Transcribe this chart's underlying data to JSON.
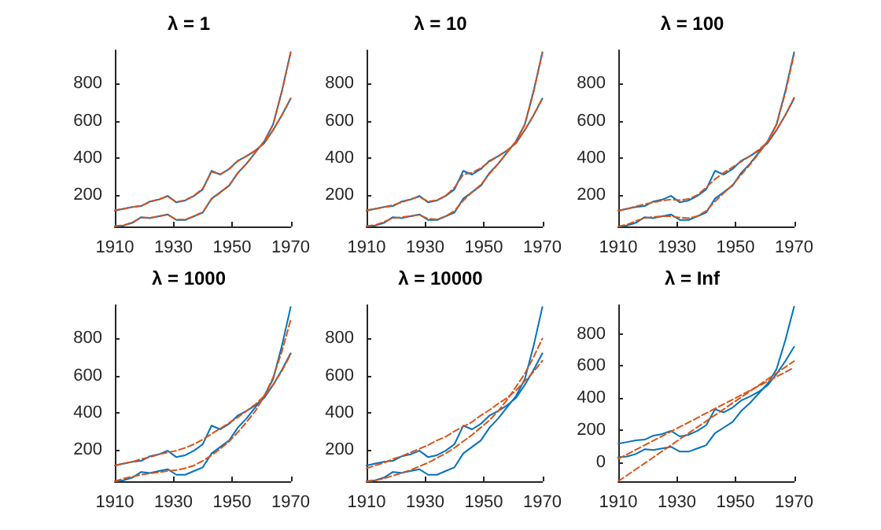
{
  "chart_data": [
    {
      "type": "line",
      "title": "λ = 1",
      "x": [
        1910,
        1913,
        1916,
        1919,
        1922,
        1925,
        1928,
        1931,
        1934,
        1937,
        1940,
        1943,
        1946,
        1949,
        1952,
        1955,
        1958,
        1961,
        1964,
        1967,
        1970
      ],
      "xlim": [
        1910,
        1970
      ],
      "xticks": [
        1910,
        1930,
        1950,
        1970
      ],
      "ylim": [
        30,
        980
      ],
      "yticks": [
        200,
        400,
        600,
        800
      ],
      "grid": false,
      "series": [
        {
          "color": "#0072bd",
          "line_style": "solid",
          "values": [
            115,
            125,
            135,
            140,
            165,
            175,
            195,
            160,
            170,
            195,
            230,
            330,
            310,
            340,
            385,
            410,
            440,
            480,
            550,
            630,
            720
          ]
        },
        {
          "color": "#0072bd",
          "line_style": "solid",
          "values": [
            30,
            35,
            50,
            80,
            75,
            85,
            95,
            65,
            65,
            85,
            105,
            180,
            215,
            250,
            320,
            370,
            430,
            490,
            580,
            760,
            970
          ]
        },
        {
          "color": "#d95319",
          "line_style": "dashed",
          "values": [
            118,
            125,
            135,
            142,
            162,
            177,
            192,
            162,
            172,
            196,
            235,
            325,
            312,
            340,
            383,
            410,
            440,
            480,
            550,
            630,
            720
          ]
        },
        {
          "color": "#d95319",
          "line_style": "dashed",
          "values": [
            32,
            37,
            52,
            78,
            77,
            85,
            94,
            67,
            67,
            85,
            108,
            178,
            213,
            252,
            318,
            370,
            430,
            490,
            580,
            758,
            968
          ]
        }
      ]
    },
    {
      "type": "line",
      "title": "λ = 10",
      "x": [
        1910,
        1913,
        1916,
        1919,
        1922,
        1925,
        1928,
        1931,
        1934,
        1937,
        1940,
        1943,
        1946,
        1949,
        1952,
        1955,
        1958,
        1961,
        1964,
        1967,
        1970
      ],
      "xlim": [
        1910,
        1970
      ],
      "xticks": [
        1910,
        1930,
        1950,
        1970
      ],
      "ylim": [
        30,
        980
      ],
      "yticks": [
        200,
        400,
        600,
        800
      ],
      "grid": false,
      "series": [
        {
          "color": "#0072bd",
          "line_style": "solid",
          "values": [
            115,
            125,
            135,
            140,
            165,
            175,
            195,
            160,
            170,
            195,
            230,
            330,
            310,
            340,
            385,
            410,
            440,
            480,
            550,
            630,
            720
          ]
        },
        {
          "color": "#0072bd",
          "line_style": "solid",
          "values": [
            30,
            35,
            50,
            80,
            75,
            85,
            95,
            65,
            65,
            85,
            105,
            180,
            215,
            250,
            320,
            370,
            430,
            490,
            580,
            760,
            970
          ]
        },
        {
          "color": "#d95319",
          "line_style": "dashed",
          "values": [
            118,
            125,
            135,
            145,
            160,
            178,
            190,
            165,
            172,
            196,
            240,
            310,
            320,
            345,
            380,
            410,
            440,
            480,
            550,
            630,
            720
          ]
        },
        {
          "color": "#d95319",
          "line_style": "dashed",
          "values": [
            32,
            38,
            55,
            75,
            80,
            86,
            92,
            72,
            68,
            85,
            115,
            170,
            215,
            255,
            315,
            370,
            430,
            490,
            580,
            755,
            965
          ]
        }
      ]
    },
    {
      "type": "line",
      "title": "λ = 100",
      "x": [
        1910,
        1913,
        1916,
        1919,
        1922,
        1925,
        1928,
        1931,
        1934,
        1937,
        1940,
        1943,
        1946,
        1949,
        1952,
        1955,
        1958,
        1961,
        1964,
        1967,
        1970
      ],
      "xlim": [
        1910,
        1970
      ],
      "xticks": [
        1910,
        1930,
        1950,
        1970
      ],
      "ylim": [
        30,
        980
      ],
      "yticks": [
        200,
        400,
        600,
        800
      ],
      "grid": false,
      "series": [
        {
          "color": "#0072bd",
          "line_style": "solid",
          "values": [
            115,
            125,
            135,
            140,
            165,
            175,
            195,
            160,
            170,
            195,
            230,
            330,
            310,
            340,
            385,
            410,
            440,
            480,
            550,
            630,
            720
          ]
        },
        {
          "color": "#0072bd",
          "line_style": "solid",
          "values": [
            30,
            35,
            50,
            80,
            75,
            85,
            95,
            65,
            65,
            85,
            105,
            180,
            215,
            250,
            320,
            370,
            430,
            490,
            580,
            760,
            970
          ]
        },
        {
          "color": "#d95319",
          "line_style": "dashed",
          "values": [
            115,
            125,
            138,
            150,
            160,
            170,
            175,
            172,
            178,
            200,
            240,
            285,
            320,
            350,
            380,
            410,
            445,
            485,
            550,
            630,
            725
          ]
        },
        {
          "color": "#d95319",
          "line_style": "dashed",
          "values": [
            30,
            40,
            60,
            75,
            82,
            85,
            85,
            78,
            75,
            85,
            115,
            165,
            210,
            255,
            310,
            365,
            425,
            490,
            580,
            750,
            960
          ]
        }
      ]
    },
    {
      "type": "line",
      "title": "λ = 1000",
      "x": [
        1910,
        1913,
        1916,
        1919,
        1922,
        1925,
        1928,
        1931,
        1934,
        1937,
        1940,
        1943,
        1946,
        1949,
        1952,
        1955,
        1958,
        1961,
        1964,
        1967,
        1970
      ],
      "xlim": [
        1910,
        1970
      ],
      "xticks": [
        1910,
        1930,
        1950,
        1970
      ],
      "ylim": [
        30,
        980
      ],
      "yticks": [
        200,
        400,
        600,
        800
      ],
      "grid": false,
      "series": [
        {
          "color": "#0072bd",
          "line_style": "solid",
          "values": [
            115,
            125,
            135,
            140,
            165,
            175,
            195,
            160,
            170,
            195,
            230,
            330,
            310,
            340,
            385,
            410,
            440,
            480,
            550,
            630,
            720
          ]
        },
        {
          "color": "#0072bd",
          "line_style": "solid",
          "values": [
            30,
            35,
            50,
            80,
            75,
            85,
            95,
            65,
            65,
            85,
            105,
            180,
            215,
            250,
            320,
            370,
            430,
            490,
            580,
            760,
            970
          ]
        },
        {
          "color": "#d95319",
          "line_style": "dashed",
          "values": [
            115,
            125,
            135,
            150,
            160,
            175,
            185,
            195,
            210,
            230,
            255,
            285,
            315,
            345,
            375,
            410,
            445,
            490,
            550,
            625,
            715
          ]
        },
        {
          "color": "#d95319",
          "line_style": "dashed",
          "values": [
            30,
            45,
            55,
            65,
            72,
            78,
            85,
            90,
            100,
            115,
            140,
            170,
            205,
            245,
            295,
            350,
            410,
            490,
            590,
            730,
            900
          ]
        }
      ]
    },
    {
      "type": "line",
      "title": "λ = 10000",
      "x": [
        1910,
        1913,
        1916,
        1919,
        1922,
        1925,
        1928,
        1931,
        1934,
        1937,
        1940,
        1943,
        1946,
        1949,
        1952,
        1955,
        1958,
        1961,
        1964,
        1967,
        1970
      ],
      "xlim": [
        1910,
        1970
      ],
      "xticks": [
        1910,
        1930,
        1950,
        1970
      ],
      "ylim": [
        30,
        980
      ],
      "yticks": [
        200,
        400,
        600,
        800
      ],
      "grid": false,
      "series": [
        {
          "color": "#0072bd",
          "line_style": "solid",
          "values": [
            115,
            125,
            135,
            140,
            165,
            175,
            195,
            160,
            170,
            195,
            230,
            330,
            310,
            340,
            385,
            410,
            440,
            480,
            550,
            630,
            720
          ]
        },
        {
          "color": "#0072bd",
          "line_style": "solid",
          "values": [
            30,
            35,
            50,
            80,
            75,
            85,
            95,
            65,
            65,
            85,
            105,
            180,
            215,
            250,
            320,
            370,
            430,
            490,
            580,
            760,
            970
          ]
        },
        {
          "color": "#d95319",
          "line_style": "dashed",
          "values": [
            100,
            115,
            130,
            150,
            165,
            185,
            205,
            225,
            250,
            270,
            300,
            325,
            350,
            385,
            415,
            450,
            480,
            520,
            570,
            620,
            680
          ]
        },
        {
          "color": "#d95319",
          "line_style": "dashed",
          "values": [
            30,
            35,
            45,
            60,
            75,
            90,
            110,
            130,
            155,
            180,
            210,
            245,
            280,
            320,
            360,
            410,
            470,
            540,
            610,
            700,
            800
          ]
        }
      ]
    },
    {
      "type": "line",
      "title": "λ = Inf",
      "x": [
        1910,
        1913,
        1916,
        1919,
        1922,
        1925,
        1928,
        1931,
        1934,
        1937,
        1940,
        1943,
        1946,
        1949,
        1952,
        1955,
        1958,
        1961,
        1964,
        1967,
        1970
      ],
      "xlim": [
        1910,
        1970
      ],
      "xticks": [
        1910,
        1930,
        1950,
        1970
      ],
      "ylim": [
        -120,
        980
      ],
      "yticks": [
        0,
        200,
        400,
        600,
        800
      ],
      "grid": false,
      "series": [
        {
          "color": "#0072bd",
          "line_style": "solid",
          "values": [
            115,
            125,
            135,
            140,
            165,
            175,
            195,
            160,
            170,
            195,
            230,
            330,
            310,
            340,
            385,
            410,
            440,
            480,
            550,
            630,
            720
          ]
        },
        {
          "color": "#0072bd",
          "line_style": "solid",
          "values": [
            30,
            35,
            50,
            80,
            75,
            85,
            95,
            65,
            65,
            85,
            105,
            180,
            215,
            250,
            320,
            370,
            430,
            490,
            580,
            760,
            970
          ]
        },
        {
          "color": "#d95319",
          "line_style": "dashed",
          "values": [
            20,
            48,
            77,
            105,
            134,
            162,
            191,
            219,
            248,
            276,
            305,
            333,
            362,
            390,
            419,
            447,
            476,
            504,
            533,
            561,
            590
          ]
        },
        {
          "color": "#d95319",
          "line_style": "dashed",
          "values": [
            -120,
            -83,
            -45,
            -8,
            30,
            68,
            105,
            143,
            180,
            218,
            255,
            293,
            330,
            368,
            405,
            443,
            480,
            518,
            555,
            593,
            630
          ]
        }
      ]
    }
  ]
}
